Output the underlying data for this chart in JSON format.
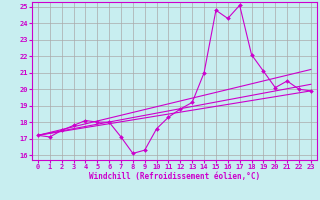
{
  "xlabel": "Windchill (Refroidissement éolien,°C)",
  "bg_color": "#c8eef0",
  "line_color": "#cc00cc",
  "grid_color": "#aaaaaa",
  "xlim": [
    -0.5,
    23.5
  ],
  "ylim": [
    15.7,
    25.3
  ],
  "yticks": [
    16,
    17,
    18,
    19,
    20,
    21,
    22,
    23,
    24,
    25
  ],
  "xticks": [
    0,
    1,
    2,
    3,
    4,
    5,
    6,
    7,
    8,
    9,
    10,
    11,
    12,
    13,
    14,
    15,
    16,
    17,
    18,
    19,
    20,
    21,
    22,
    23
  ],
  "main_line": {
    "x": [
      0,
      1,
      2,
      3,
      4,
      5,
      6,
      7,
      8,
      9,
      10,
      11,
      12,
      13,
      14,
      15,
      16,
      17,
      18,
      19,
      20,
      21,
      22,
      23
    ],
    "y": [
      17.2,
      17.1,
      17.5,
      17.8,
      18.1,
      18.0,
      18.0,
      17.1,
      16.1,
      16.3,
      17.6,
      18.3,
      18.8,
      19.2,
      21.0,
      24.8,
      24.3,
      25.1,
      22.1,
      21.1,
      20.1,
      20.5,
      20.0,
      19.9
    ]
  },
  "straight_lines": [
    {
      "x": [
        0,
        23
      ],
      "y": [
        17.2,
        19.9
      ]
    },
    {
      "x": [
        0,
        23
      ],
      "y": [
        17.2,
        20.3
      ]
    },
    {
      "x": [
        0,
        23
      ],
      "y": [
        17.2,
        21.2
      ]
    }
  ]
}
